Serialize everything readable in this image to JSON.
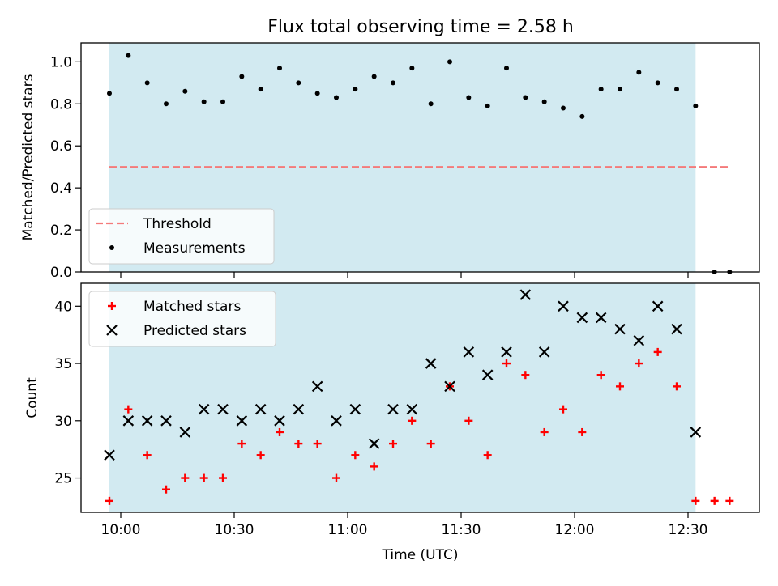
{
  "title": "Flux total observing time = 2.58 h",
  "chart_data": [
    {
      "type": "scatter",
      "ylabel": "Matched/Predicted stars",
      "xlabel": "",
      "ylim": [
        0.0,
        1.09
      ],
      "yticks": [
        "0.0",
        "0.2",
        "0.4",
        "0.6",
        "0.8",
        "1.0"
      ],
      "shaded_span": [
        "09:57",
        "12:32"
      ],
      "threshold": {
        "name": "Threshold",
        "value": 0.5,
        "x_range": [
          "09:57",
          "12:41"
        ],
        "color": "#f47a7a"
      },
      "legend": {
        "position": "lower-left",
        "entries": [
          "Threshold",
          "Measurements"
        ]
      },
      "series": [
        {
          "name": "Measurements",
          "color": "#000000",
          "x": [
            "09:57",
            "10:02",
            "10:07",
            "10:12",
            "10:17",
            "10:22",
            "10:27",
            "10:32",
            "10:37",
            "10:42",
            "10:47",
            "10:52",
            "10:57",
            "11:02",
            "11:07",
            "11:12",
            "11:17",
            "11:22",
            "11:27",
            "11:32",
            "11:37",
            "11:42",
            "11:47",
            "11:52",
            "11:57",
            "12:02",
            "12:07",
            "12:12",
            "12:17",
            "12:22",
            "12:27",
            "12:32",
            "12:37",
            "12:41"
          ],
          "y": [
            0.85,
            1.03,
            0.9,
            0.8,
            0.86,
            0.81,
            0.81,
            0.93,
            0.87,
            0.97,
            0.9,
            0.85,
            0.83,
            0.87,
            0.93,
            0.9,
            0.97,
            0.8,
            1.0,
            0.83,
            0.79,
            0.97,
            0.83,
            0.81,
            0.78,
            0.74,
            0.87,
            0.87,
            0.95,
            0.9,
            0.87,
            0.79,
            0.0,
            0.0
          ]
        }
      ]
    },
    {
      "type": "scatter",
      "ylabel": "Count",
      "xlabel": "Time (UTC)",
      "ylim": [
        22,
        42
      ],
      "yticks": [
        "25",
        "30",
        "35",
        "40"
      ],
      "xticks": [
        "10:00",
        "10:30",
        "11:00",
        "11:30",
        "12:00",
        "12:30"
      ],
      "shaded_span": [
        "09:57",
        "12:32"
      ],
      "legend": {
        "position": "top-left",
        "entries": [
          "Matched stars",
          "Predicted stars"
        ]
      },
      "series": [
        {
          "name": "Matched stars",
          "marker": "plus",
          "color": "#ff0000",
          "x": [
            "09:57",
            "10:02",
            "10:07",
            "10:12",
            "10:17",
            "10:22",
            "10:27",
            "10:32",
            "10:37",
            "10:42",
            "10:47",
            "10:52",
            "10:57",
            "11:02",
            "11:07",
            "11:12",
            "11:17",
            "11:22",
            "11:27",
            "11:32",
            "11:37",
            "11:42",
            "11:47",
            "11:52",
            "11:57",
            "12:02",
            "12:07",
            "12:12",
            "12:17",
            "12:22",
            "12:27",
            "12:32",
            "12:37",
            "12:41"
          ],
          "y": [
            23,
            31,
            27,
            24,
            25,
            25,
            25,
            28,
            27,
            29,
            28,
            28,
            25,
            27,
            26,
            28,
            30,
            28,
            33,
            30,
            27,
            35,
            34,
            29,
            31,
            29,
            34,
            33,
            35,
            36,
            33,
            23,
            23,
            23
          ]
        },
        {
          "name": "Predicted stars",
          "marker": "x",
          "color": "#000000",
          "x": [
            "09:57",
            "10:02",
            "10:07",
            "10:12",
            "10:17",
            "10:22",
            "10:27",
            "10:32",
            "10:37",
            "10:42",
            "10:47",
            "10:52",
            "10:57",
            "11:02",
            "11:07",
            "11:12",
            "11:17",
            "11:22",
            "11:27",
            "11:32",
            "11:37",
            "11:42",
            "11:47",
            "11:52",
            "11:57",
            "12:02",
            "12:07",
            "12:12",
            "12:17",
            "12:22",
            "12:27",
            "12:32"
          ],
          "y": [
            27,
            30,
            30,
            30,
            29,
            31,
            31,
            30,
            31,
            30,
            31,
            33,
            30,
            31,
            28,
            31,
            31,
            35,
            33,
            36,
            34,
            36,
            41,
            36,
            40,
            39,
            39,
            38,
            37,
            40,
            38,
            29
          ]
        }
      ]
    }
  ]
}
